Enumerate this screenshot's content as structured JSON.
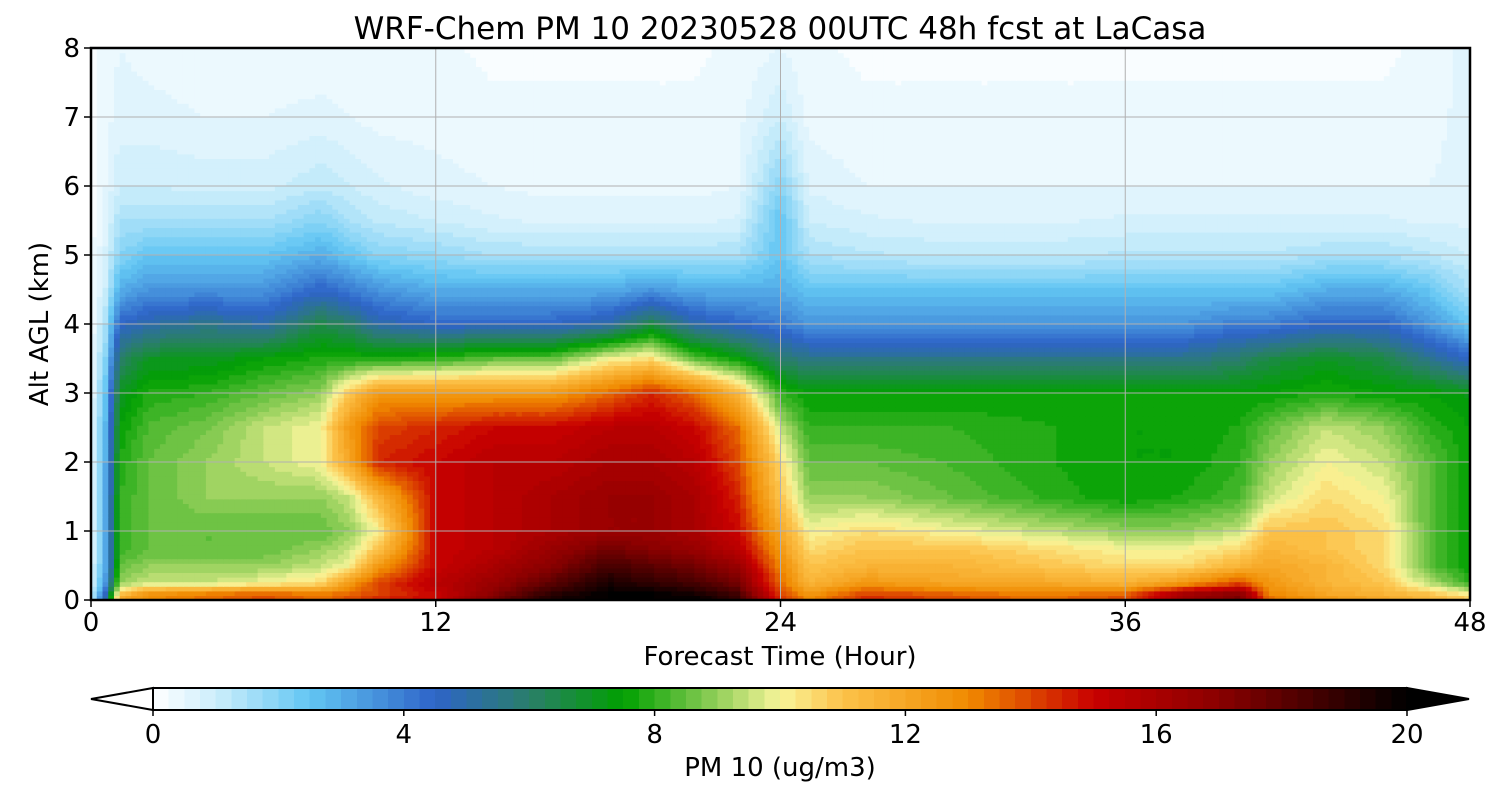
{
  "chart_data": {
    "type": "heatmap",
    "title": "WRF-Chem PM 10  20230528 00UTC 48h fcst at LaCasa",
    "xlabel": "Forecast Time (Hour)",
    "ylabel": "Alt AGL (km)",
    "xlim": [
      0,
      48
    ],
    "ylim": [
      0,
      8
    ],
    "x_ticks": [
      0,
      12,
      24,
      36,
      48
    ],
    "y_ticks": [
      0,
      1,
      2,
      3,
      4,
      5,
      6,
      7,
      8
    ],
    "grid": true,
    "colorbar": {
      "label": "PM 10  (ug/m3)",
      "range": [
        0,
        20
      ],
      "ticks": [
        0,
        4,
        8,
        12,
        16,
        20
      ],
      "extend": "both",
      "orientation": "horizontal",
      "stops": [
        {
          "v": 0,
          "c": "#ffffff"
        },
        {
          "v": 1,
          "c": "#cdeefb"
        },
        {
          "v": 2.5,
          "c": "#62c6f3"
        },
        {
          "v": 4.5,
          "c": "#2e64c8"
        },
        {
          "v": 6,
          "c": "#2a7e6a"
        },
        {
          "v": 7.5,
          "c": "#00a000"
        },
        {
          "v": 9,
          "c": "#93cf5a"
        },
        {
          "v": 10,
          "c": "#f8f59a"
        },
        {
          "v": 11,
          "c": "#fcc24a"
        },
        {
          "v": 13,
          "c": "#f08a00"
        },
        {
          "v": 15,
          "c": "#c80000"
        },
        {
          "v": 17,
          "c": "#8a0000"
        },
        {
          "v": 20,
          "c": "#000000"
        }
      ]
    },
    "x": [
      0,
      0.5,
      1,
      2,
      4,
      6,
      8,
      9,
      10,
      12,
      14,
      16,
      18,
      19.5,
      21,
      22.5,
      24,
      25,
      27,
      30,
      33,
      36,
      38,
      40,
      41,
      43,
      45,
      46.5,
      48
    ],
    "y": [
      0,
      0.1,
      0.25,
      0.5,
      0.75,
      1,
      1.5,
      2,
      2.5,
      3,
      3.5,
      4,
      4.5,
      5,
      5.5,
      6,
      7,
      8
    ],
    "z": [
      [
        1.0,
        5.0,
        12.0,
        13.0,
        13.5,
        14.0,
        13.5,
        14.0,
        14.5,
        15.0,
        17.5,
        19.5,
        20.0,
        20.0,
        20.0,
        19.0,
        14.5,
        13.0,
        14.5,
        14.0,
        13.5,
        14.0,
        16.5,
        17.5,
        13.5,
        12.5,
        12.0,
        11.5,
        11.0
      ],
      [
        0.8,
        4.5,
        11.0,
        12.5,
        13.0,
        13.5,
        13.0,
        13.5,
        14.0,
        15.0,
        17.0,
        19.0,
        20.0,
        20.0,
        19.5,
        18.5,
        14.0,
        12.5,
        14.0,
        13.5,
        13.0,
        13.5,
        16.0,
        17.0,
        13.0,
        12.0,
        11.5,
        11.0,
        10.0
      ],
      [
        0.6,
        3.5,
        9.0,
        9.5,
        9.5,
        10.0,
        10.5,
        12.5,
        14.0,
        15.5,
        16.5,
        18.0,
        19.5,
        19.0,
        18.5,
        17.5,
        13.5,
        11.5,
        12.5,
        12.0,
        12.0,
        11.5,
        12.5,
        14.0,
        12.5,
        11.5,
        11.0,
        9.5,
        8.0
      ],
      [
        0.5,
        3.0,
        8.5,
        9.0,
        9.0,
        9.0,
        9.5,
        10.0,
        12.5,
        15.0,
        16.0,
        17.0,
        18.5,
        18.0,
        17.5,
        16.5,
        13.0,
        11.0,
        11.5,
        11.5,
        11.0,
        10.5,
        10.5,
        11.5,
        12.0,
        11.5,
        10.5,
        8.5,
        7.5
      ],
      [
        0.4,
        3.0,
        8.0,
        8.5,
        8.5,
        8.5,
        9.0,
        9.5,
        11.0,
        15.0,
        15.5,
        16.5,
        17.5,
        17.0,
        16.5,
        15.5,
        12.5,
        10.5,
        11.0,
        11.0,
        10.5,
        10.0,
        10.0,
        10.5,
        11.5,
        11.0,
        10.5,
        8.5,
        7.5
      ],
      [
        0.4,
        3.0,
        8.0,
        8.5,
        8.5,
        8.5,
        8.5,
        9.0,
        10.0,
        15.0,
        15.5,
        16.0,
        16.5,
        16.5,
        16.0,
        15.0,
        12.0,
        10.0,
        10.5,
        10.0,
        9.5,
        9.0,
        9.0,
        9.5,
        11.0,
        11.0,
        10.5,
        8.5,
        7.5
      ],
      [
        0.3,
        3.0,
        8.0,
        8.5,
        9.0,
        9.0,
        9.0,
        9.5,
        11.5,
        15.0,
        15.5,
        16.0,
        16.5,
        16.5,
        16.0,
        14.5,
        11.0,
        9.0,
        9.0,
        8.5,
        8.0,
        7.5,
        7.8,
        8.2,
        9.5,
        10.5,
        10.0,
        8.5,
        7.5
      ],
      [
        0.3,
        3.0,
        7.8,
        8.5,
        9.0,
        9.5,
        10.0,
        12.0,
        14.5,
        15.0,
        15.5,
        15.5,
        16.0,
        16.0,
        15.5,
        14.0,
        10.5,
        8.5,
        8.5,
        8.2,
        7.8,
        7.5,
        7.5,
        8.0,
        9.0,
        10.0,
        9.5,
        8.5,
        7.5
      ],
      [
        0.3,
        2.8,
        7.5,
        8.3,
        8.7,
        9.5,
        10.0,
        12.5,
        14.0,
        14.5,
        15.0,
        15.0,
        15.5,
        15.5,
        15.0,
        13.5,
        9.5,
        8.0,
        8.0,
        8.0,
        7.8,
        7.5,
        7.5,
        7.8,
        8.5,
        9.5,
        9.0,
        8.0,
        7.5
      ],
      [
        0.3,
        2.5,
        7.0,
        7.8,
        8.0,
        8.5,
        9.0,
        11.0,
        12.5,
        12.5,
        12.5,
        12.5,
        13.5,
        14.5,
        13.5,
        11.5,
        8.0,
        7.5,
        7.5,
        7.5,
        7.5,
        7.5,
        7.5,
        7.5,
        7.5,
        7.8,
        7.5,
        7.5,
        7.2
      ],
      [
        0.3,
        2.0,
        6.0,
        7.0,
        7.0,
        7.5,
        7.8,
        7.8,
        7.8,
        8.0,
        8.5,
        8.5,
        10.0,
        10.5,
        8.5,
        7.5,
        6.0,
        5.5,
        5.5,
        5.5,
        5.5,
        5.5,
        5.5,
        6.0,
        6.5,
        7.0,
        6.5,
        5.5,
        4.5
      ],
      [
        0.2,
        1.5,
        4.5,
        5.0,
        5.5,
        5.0,
        6.5,
        6.0,
        5.0,
        4.5,
        4.5,
        4.5,
        5.0,
        6.5,
        5.0,
        4.5,
        4.0,
        3.5,
        3.5,
        3.5,
        3.5,
        3.5,
        3.5,
        4.0,
        4.0,
        4.5,
        4.5,
        3.5,
        2.5
      ],
      [
        0.2,
        1.0,
        3.0,
        3.5,
        3.5,
        3.5,
        4.5,
        4.0,
        3.5,
        3.0,
        3.0,
        3.0,
        3.0,
        3.5,
        3.0,
        3.0,
        3.0,
        2.5,
        2.5,
        2.5,
        2.5,
        2.5,
        2.5,
        2.5,
        2.5,
        3.0,
        3.0,
        2.5,
        1.5
      ],
      [
        0.15,
        0.8,
        2.0,
        2.5,
        2.5,
        2.5,
        3.0,
        2.5,
        2.0,
        1.8,
        1.5,
        1.5,
        1.5,
        1.5,
        1.5,
        1.5,
        2.5,
        1.5,
        1.3,
        1.2,
        1.2,
        1.3,
        1.3,
        1.3,
        1.3,
        1.5,
        1.5,
        1.3,
        1.0
      ],
      [
        0.12,
        0.6,
        1.5,
        1.5,
        1.5,
        1.5,
        2.0,
        1.5,
        1.2,
        1.0,
        0.8,
        0.7,
        0.7,
        0.7,
        0.7,
        0.8,
        2.5,
        1.0,
        0.8,
        0.7,
        0.7,
        0.8,
        0.8,
        0.8,
        0.8,
        0.8,
        0.8,
        0.7,
        0.7
      ],
      [
        0.1,
        0.5,
        1.0,
        1.0,
        0.9,
        0.9,
        1.2,
        1.0,
        0.8,
        0.6,
        0.5,
        0.4,
        0.4,
        0.4,
        0.4,
        0.5,
        2.0,
        0.7,
        0.5,
        0.5,
        0.5,
        0.5,
        0.5,
        0.5,
        0.5,
        0.5,
        0.5,
        0.5,
        0.6
      ],
      [
        0.1,
        0.4,
        0.6,
        0.6,
        0.5,
        0.5,
        0.6,
        0.5,
        0.4,
        0.4,
        0.3,
        0.3,
        0.3,
        0.3,
        0.3,
        0.4,
        1.0,
        0.4,
        0.3,
        0.3,
        0.3,
        0.3,
        0.3,
        0.3,
        0.3,
        0.3,
        0.3,
        0.4,
        0.6
      ],
      [
        0.1,
        0.4,
        0.5,
        0.4,
        0.3,
        0.3,
        0.3,
        0.3,
        0.3,
        0.3,
        0.2,
        0.2,
        0.2,
        0.2,
        0.2,
        0.3,
        0.5,
        0.3,
        0.2,
        0.2,
        0.2,
        0.2,
        0.2,
        0.2,
        0.2,
        0.2,
        0.2,
        0.3,
        0.6
      ]
    ]
  }
}
